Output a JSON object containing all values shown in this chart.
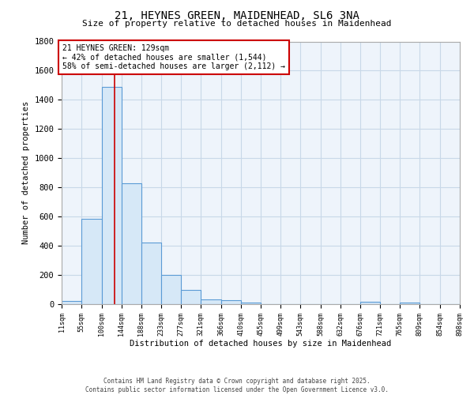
{
  "title_line1": "21, HEYNES GREEN, MAIDENHEAD, SL6 3NA",
  "title_line2": "Size of property relative to detached houses in Maidenhead",
  "xlabel": "Distribution of detached houses by size in Maidenhead",
  "ylabel": "Number of detached properties",
  "footer_line1": "Contains HM Land Registry data © Crown copyright and database right 2025.",
  "footer_line2": "Contains public sector information licensed under the Open Government Licence v3.0.",
  "bin_edges": [
    11,
    55,
    100,
    144,
    188,
    233,
    277,
    321,
    366,
    410,
    455,
    499,
    543,
    588,
    632,
    676,
    721,
    765,
    809,
    854,
    898
  ],
  "bar_heights": [
    20,
    585,
    1490,
    830,
    420,
    200,
    100,
    35,
    25,
    10,
    0,
    0,
    0,
    0,
    0,
    15,
    0,
    10,
    0,
    0
  ],
  "bar_facecolor": "#d6e8f7",
  "bar_edgecolor": "#5b9bd5",
  "grid_color": "#c8d8e8",
  "background_color": "#eef4fb",
  "ylim": [
    0,
    1800
  ],
  "yticks": [
    0,
    200,
    400,
    600,
    800,
    1000,
    1200,
    1400,
    1600,
    1800
  ],
  "property_size": 129,
  "red_line_color": "#cc0000",
  "annotation_text": "21 HEYNES GREEN: 129sqm\n← 42% of detached houses are smaller (1,544)\n58% of semi-detached houses are larger (2,112) →",
  "annotation_box_color": "#cc0000",
  "tick_labels": [
    "11sqm",
    "55sqm",
    "100sqm",
    "144sqm",
    "188sqm",
    "233sqm",
    "277sqm",
    "321sqm",
    "366sqm",
    "410sqm",
    "455sqm",
    "499sqm",
    "543sqm",
    "588sqm",
    "632sqm",
    "676sqm",
    "721sqm",
    "765sqm",
    "809sqm",
    "854sqm",
    "898sqm"
  ]
}
